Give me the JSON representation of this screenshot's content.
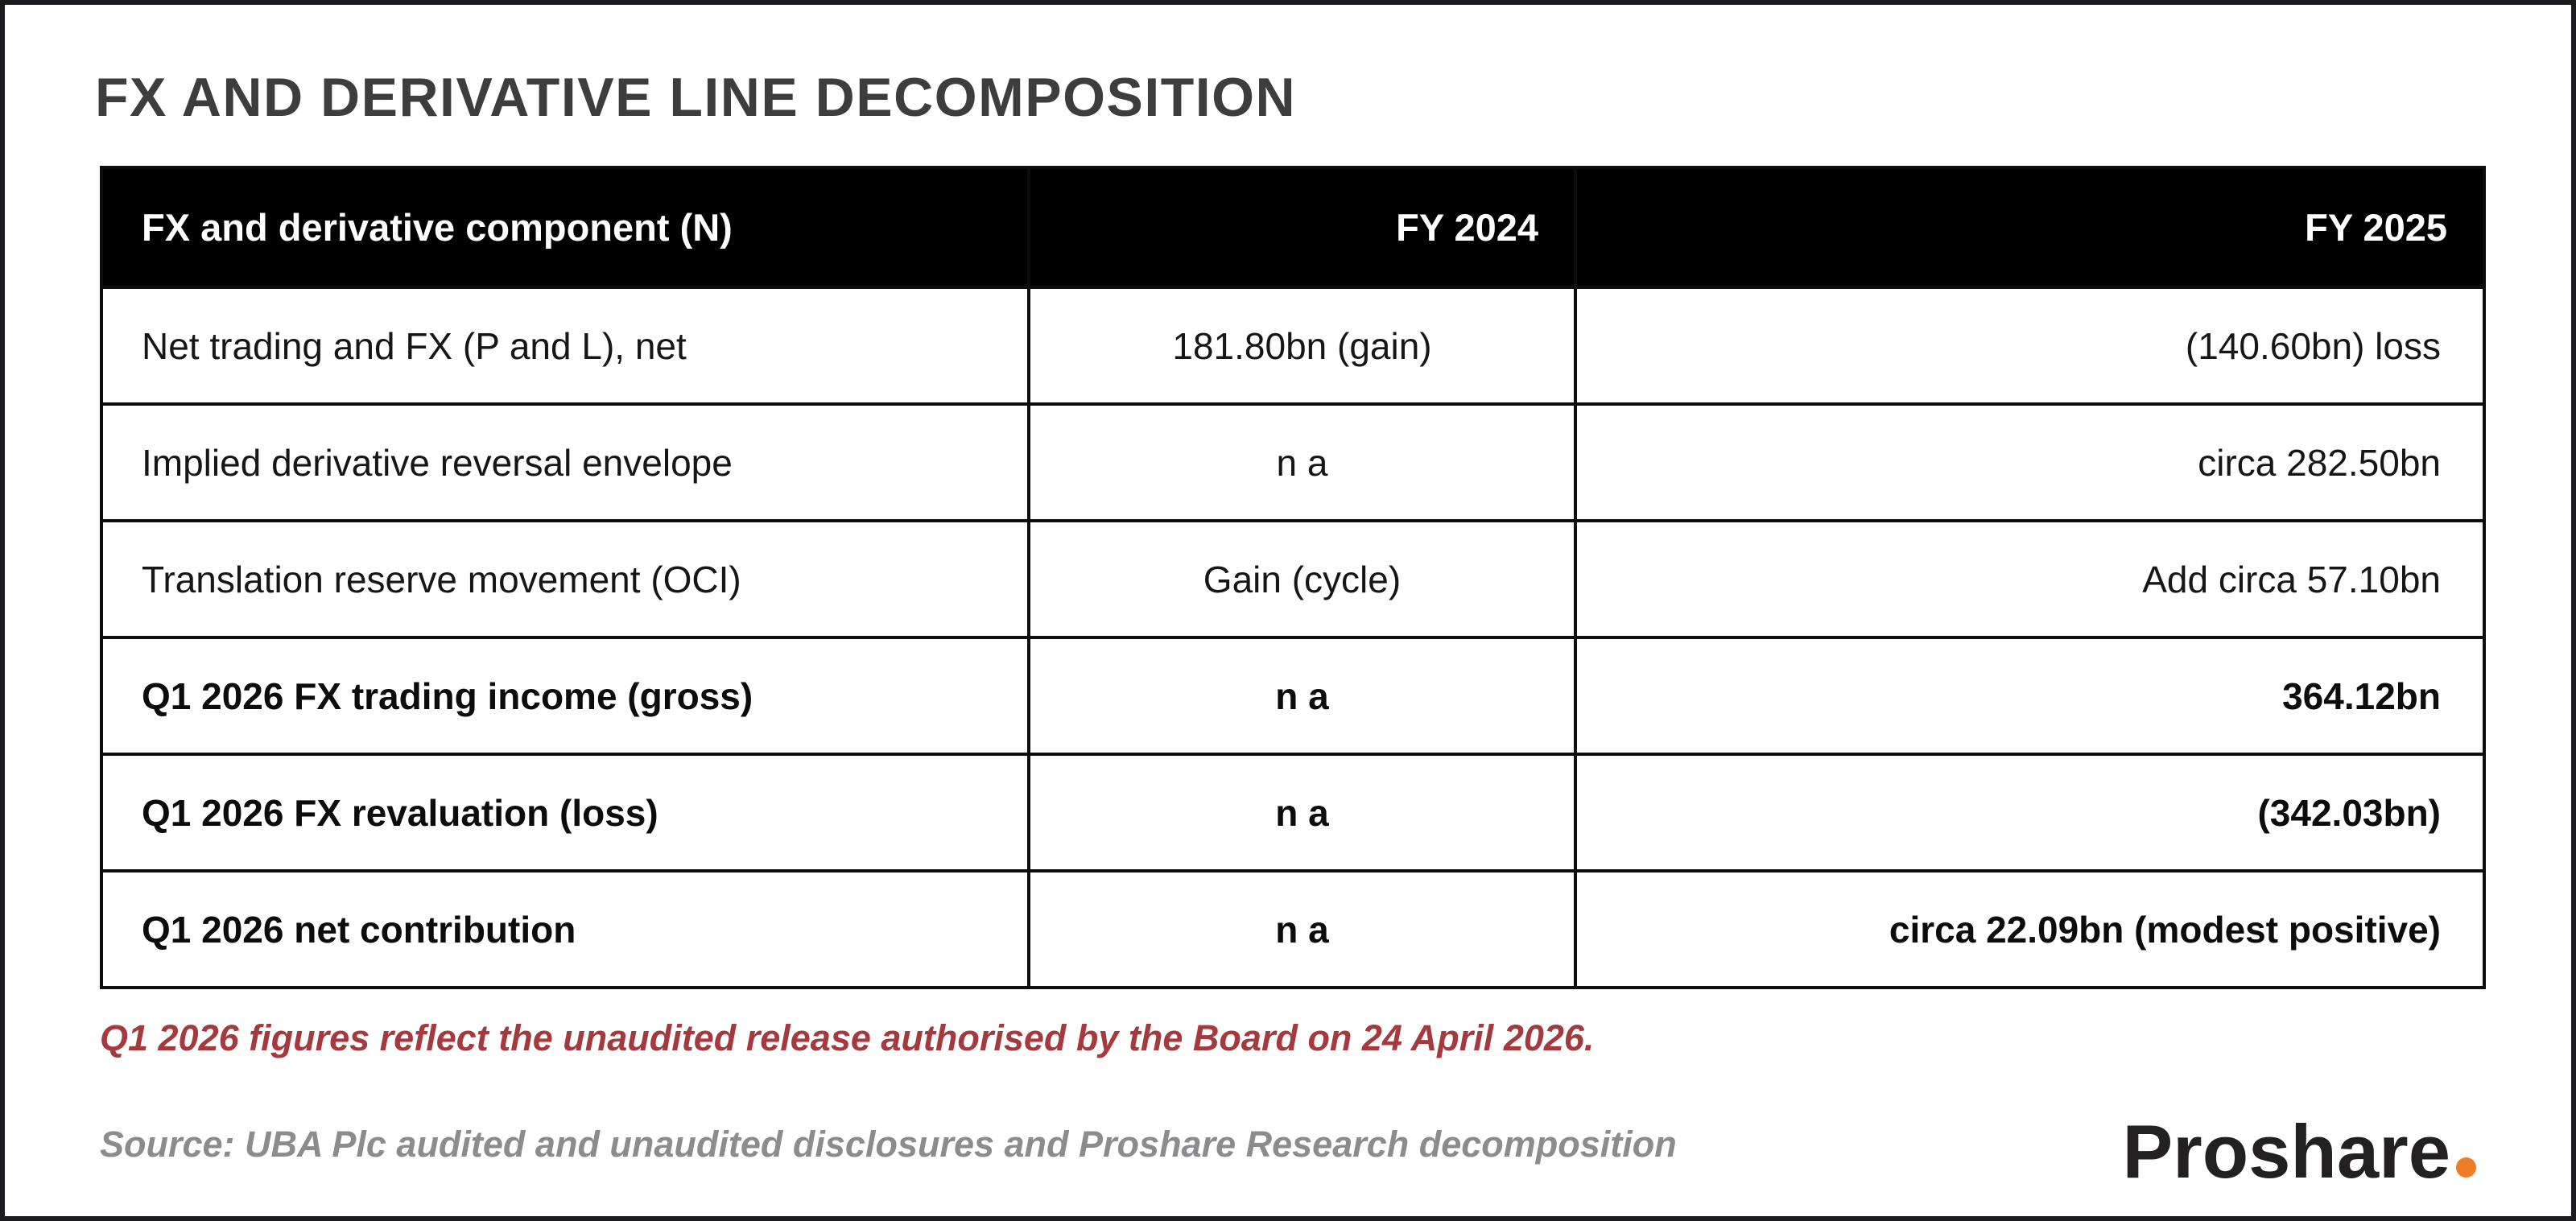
{
  "chart_data": {
    "type": "table",
    "title": "FX AND DERIVATIVE LINE DECOMPOSITION",
    "columns": [
      "FX and derivative component (N)",
      "FY 2024",
      "FY 2025"
    ],
    "rows": [
      {
        "component": "Net trading and FX (P and L), net",
        "fy2024": "181.80bn (gain)",
        "fy2025": "(140.60bn) loss",
        "emphasis": false
      },
      {
        "component": "Implied derivative reversal envelope",
        "fy2024": "n a",
        "fy2025": "circa 282.50bn",
        "emphasis": false
      },
      {
        "component": "Translation reserve movement (OCI)",
        "fy2024": "Gain (cycle)",
        "fy2025": "Add circa 57.10bn",
        "emphasis": false
      },
      {
        "component": "Q1 2026 FX trading income (gross)",
        "fy2024": "n a",
        "fy2025": "364.12bn",
        "emphasis": true
      },
      {
        "component": "Q1 2026 FX revaluation (loss)",
        "fy2024": "n a",
        "fy2025": "(342.03bn)",
        "emphasis": true
      },
      {
        "component": "Q1 2026 net contribution",
        "fy2024": "n a",
        "fy2025": "circa 22.09bn (modest positive)",
        "emphasis": true
      }
    ],
    "footnote": "Q1 2026 figures reflect the unaudited release authorised by the Board on 24 April 2026.",
    "source": "Source: UBA Plc audited and unaudited disclosures and Proshare Research decomposition",
    "layout_hints": {
      "header_alignment": [
        "left",
        "right",
        "right"
      ],
      "cell_alignment": [
        "left",
        "center",
        "right"
      ]
    }
  },
  "logo": {
    "text": "Proshare"
  },
  "colors": {
    "header_bg": "#000000",
    "header_text": "#ffffff",
    "title_text": "#3d3d3d",
    "body_text": "#161616",
    "footnote_red": "#a43a3d",
    "source_gray": "#8c8c8e",
    "logo_text": "#232021",
    "logo_dot_orange": "#ef7d24",
    "canvas_border": "#1b1b1f"
  }
}
